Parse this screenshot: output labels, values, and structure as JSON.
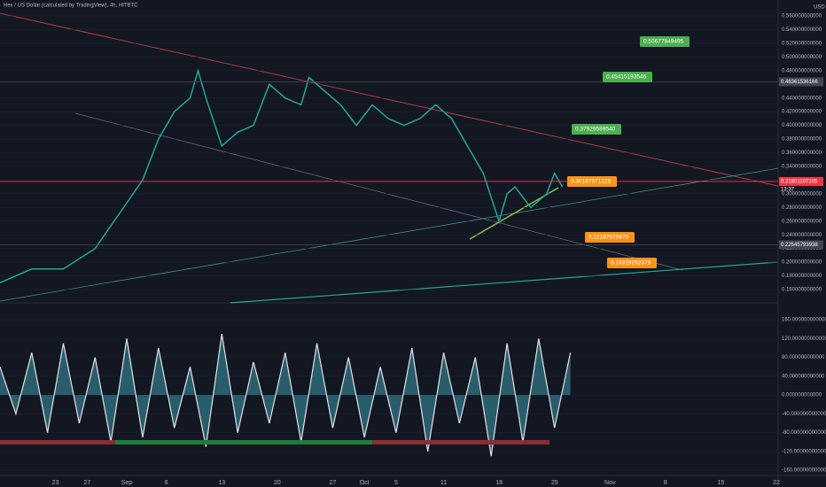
{
  "header": {
    "title": "Hex / US Dollar (calculated by TradingView), 4h, HITBTC",
    "currency": "USD",
    "countdown": "13:37"
  },
  "chart_data": [
    {
      "type": "line",
      "color": "#26a69a",
      "x": [
        16,
        20,
        24,
        28,
        31,
        34,
        36,
        38,
        40,
        41,
        42,
        44,
        46,
        48,
        50,
        52,
        54,
        55,
        57,
        59,
        61,
        63,
        65,
        67,
        69,
        71,
        73,
        75,
        77,
        79,
        80,
        81,
        83,
        85,
        86,
        87
      ],
      "values": [
        0.17,
        0.19,
        0.19,
        0.22,
        0.27,
        0.32,
        0.38,
        0.42,
        0.44,
        0.48,
        0.44,
        0.37,
        0.39,
        0.4,
        0.46,
        0.44,
        0.43,
        0.47,
        0.45,
        0.43,
        0.4,
        0.43,
        0.41,
        0.4,
        0.41,
        0.43,
        0.41,
        0.37,
        0.33,
        0.26,
        0.3,
        0.31,
        0.28,
        0.3,
        0.33,
        0.31
      ],
      "xlim": [
        16,
        114
      ],
      "ylim": [
        0.1406,
        0.5833
      ],
      "yticks": [
        {
          "value": 0.16,
          "label": "0.160000000000"
        },
        {
          "value": 0.18,
          "label": "0.180000000000"
        },
        {
          "value": 0.2,
          "label": "0.200000000000"
        },
        {
          "value": 0.22,
          "label": "0.220000000000"
        },
        {
          "value": 0.24,
          "label": "0.240000000000"
        },
        {
          "value": 0.26,
          "label": "0.260000000000"
        },
        {
          "value": 0.28,
          "label": "0.280000000000"
        },
        {
          "value": 0.3,
          "label": "0.300000000000"
        },
        {
          "value": 0.32,
          "label": "0.320000000000"
        },
        {
          "value": 0.34,
          "label": "0.340000000000"
        },
        {
          "value": 0.36,
          "label": "0.360000000000"
        },
        {
          "value": 0.38,
          "label": "0.380000000000"
        },
        {
          "value": 0.4,
          "label": "0.400000000000"
        },
        {
          "value": 0.42,
          "label": "0.420000000000"
        },
        {
          "value": 0.44,
          "label": "0.440000000000"
        },
        {
          "value": 0.46,
          "label": "0.460000000000"
        },
        {
          "value": 0.48,
          "label": "0.480000000000"
        },
        {
          "value": 0.5,
          "label": "0.500000000000"
        },
        {
          "value": 0.52,
          "label": "0.520000000000"
        },
        {
          "value": 0.54,
          "label": "0.540000000000"
        },
        {
          "value": 0.56,
          "label": "0.560000000000"
        }
      ],
      "price_lines": [
        {
          "value": 0.46361536166,
          "color": "#434651"
        },
        {
          "value": 0.31801167205,
          "color": "#f23645"
        },
        {
          "value": 0.22545793938,
          "color": "#434651"
        }
      ],
      "annotations": [
        {
          "label": "0.50677849495",
          "color": "#4caf50"
        },
        {
          "label": "0.45415193546",
          "color": "#4caf50"
        },
        {
          "label": "0.37929599540",
          "color": "#4caf50"
        },
        {
          "label": "0.30167571225",
          "color": "#f7931a"
        },
        {
          "label": "0.22167079870",
          "color": "#f7931a"
        },
        {
          "label": "0.18329292379",
          "color": "#f7931a"
        }
      ]
    },
    {
      "type": "area",
      "color": "#2f6f7e",
      "x": [
        16,
        18,
        20,
        22,
        24,
        26,
        28,
        30,
        32,
        34,
        36,
        38,
        40,
        42,
        44,
        46,
        48,
        50,
        52,
        54,
        56,
        58,
        60,
        62,
        64,
        66,
        68,
        70,
        72,
        74,
        76,
        78,
        80,
        82,
        84,
        86,
        88
      ],
      "values": [
        60,
        -40,
        90,
        -80,
        110,
        -60,
        80,
        -100,
        120,
        -90,
        100,
        -70,
        60,
        -110,
        130,
        -80,
        70,
        -60,
        90,
        -100,
        110,
        -70,
        80,
        -90,
        60,
        -80,
        100,
        -120,
        90,
        -60,
        80,
        -130,
        110,
        -100,
        120,
        -70,
        90
      ],
      "xlim": [
        16,
        114
      ],
      "ylim": [
        -171,
        196
      ],
      "yticks": [
        {
          "value": 160,
          "label": "160.000000000000"
        },
        {
          "value": 120,
          "label": "120.000000000000"
        },
        {
          "value": 80,
          "label": "80.000000000000"
        },
        {
          "value": 40,
          "label": "40.000000000000"
        },
        {
          "value": 0,
          "label": "0.000000000000"
        },
        {
          "value": -40,
          "label": "-40.000000000000"
        },
        {
          "value": -80,
          "label": "-80.000000000000"
        },
        {
          "value": -120,
          "label": "-120.000000000000"
        },
        {
          "value": -160,
          "label": "-160.000000000000"
        }
      ],
      "xticks": [
        {
          "value": 23,
          "label": "23"
        },
        {
          "value": 27,
          "label": "27"
        },
        {
          "value": 32,
          "label": "Sep"
        },
        {
          "value": 37,
          "label": "6"
        },
        {
          "value": 44,
          "label": "13"
        },
        {
          "value": 51,
          "label": "20"
        },
        {
          "value": 58,
          "label": "27"
        },
        {
          "value": 62,
          "label": "Oct"
        },
        {
          "value": 66,
          "label": "5"
        },
        {
          "value": 72,
          "label": "11"
        },
        {
          "value": 79,
          "label": "18"
        },
        {
          "value": 86,
          "label": "25"
        },
        {
          "value": 93,
          "label": "Nov"
        },
        {
          "value": 100,
          "label": "8"
        },
        {
          "value": 107,
          "label": "15"
        },
        {
          "value": 114,
          "label": "22"
        }
      ]
    }
  ]
}
